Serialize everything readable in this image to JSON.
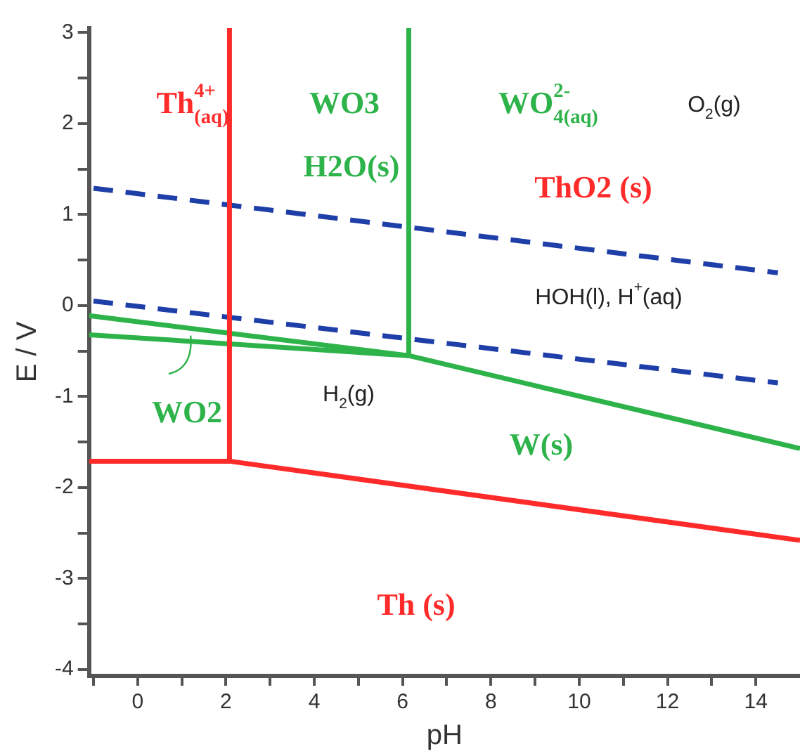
{
  "chart_data": {
    "type": "line",
    "xlabel": "pH",
    "ylabel": "E / V",
    "xlim": [
      -1.1,
      15
    ],
    "ylim": [
      -4.07,
      3.05
    ],
    "xticks": [
      {
        "value": -1,
        "label": null
      },
      0,
      {
        "value": 1,
        "label": null
      },
      2,
      {
        "value": 3,
        "label": null
      },
      4,
      {
        "value": 5,
        "label": null
      },
      6,
      {
        "value": 7,
        "label": null
      },
      8,
      {
        "value": 9,
        "label": null
      },
      10,
      {
        "value": 11,
        "label": null
      },
      12,
      {
        "value": 13,
        "label": null
      },
      14
    ],
    "yticks": [
      -4,
      {
        "value": -3.5,
        "label": null
      },
      -3,
      {
        "value": -2.5,
        "label": null
      },
      -2,
      {
        "value": -1.5,
        "label": null
      },
      -1,
      {
        "value": -0.5,
        "label": null
      },
      0,
      {
        "value": 0.5,
        "label": null
      },
      1,
      {
        "value": 1.5,
        "label": null
      },
      2,
      {
        "value": 2.5,
        "label": null
      },
      3
    ],
    "grid": false,
    "legend": false,
    "marker": "none",
    "series": [
      {
        "color": "#ff2a2a",
        "x": [
          2.08,
          2.08
        ],
        "values": [
          3.05,
          -1.71
        ]
      },
      {
        "color": "#ff2a2a",
        "x": [
          -1.1,
          2.08,
          15
        ],
        "values": [
          -1.71,
          -1.71,
          -2.58
        ]
      },
      {
        "color": "#2db34a",
        "x": [
          6.14,
          6.14
        ],
        "values": [
          3.05,
          -0.55
        ]
      },
      {
        "color": "#2db34a",
        "x": [
          -1.1,
          6.14,
          15
        ],
        "values": [
          -0.11,
          -0.55,
          -1.57
        ]
      },
      {
        "color": "#2db34a",
        "x": [
          -1.1,
          6.14
        ],
        "values": [
          -0.32,
          -0.55
        ]
      },
      {
        "color": "#1f3fa8",
        "line_style": "dashed",
        "x": [
          -1,
          14.5
        ],
        "values": [
          1.29,
          0.36
        ]
      },
      {
        "color": "#1f3fa8",
        "line_style": "dashed",
        "x": [
          -1,
          14.5
        ],
        "values": [
          0.05,
          -0.85
        ]
      }
    ],
    "annotations": [
      "Th$^{4+}$$_{(aq)}$",
      "WO3",
      "H2O(s)",
      "WO$^{2-}$$_{4(aq)}$",
      "O$_{2}$(g)",
      "ThO2 (s)",
      "HOH(l), H$^{+}$(aq)",
      {
        "text": "WO2",
        "x": 1.2,
        "y": -0.33
      },
      "H$_{2}$(g)",
      "W(s)",
      "Th (s)"
    ]
  }
}
